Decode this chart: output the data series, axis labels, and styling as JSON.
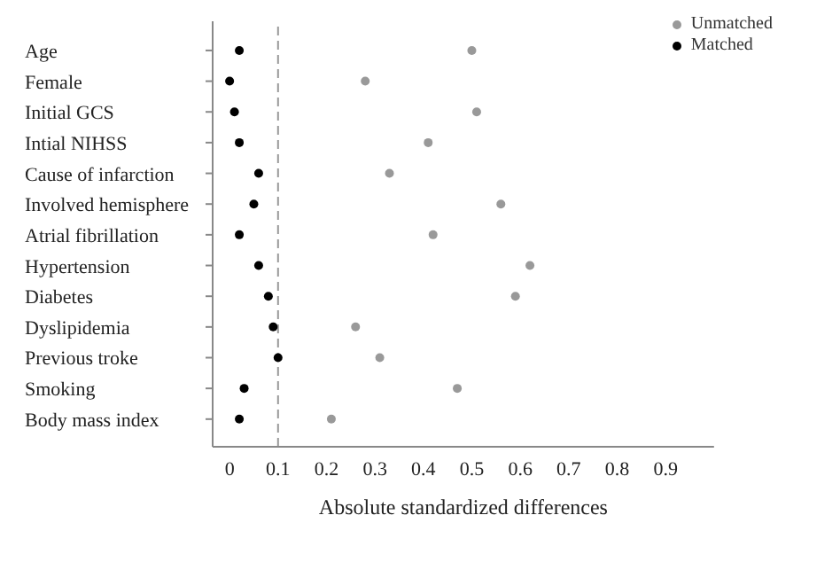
{
  "chart_data": {
    "type": "scatter",
    "orientation": "horizontal",
    "xlabel": "Absolute standardized differences",
    "categories": [
      "Age",
      "Female",
      "Initial GCS",
      "Intial NIHSS",
      "Cause of infarction",
      "Involved hemisphere",
      "Atrial fibrillation",
      "Hypertension",
      "Diabetes",
      "Dyslipidemia",
      "Previous troke",
      "Smoking",
      "Body mass index"
    ],
    "series": [
      {
        "name": "Unmatched",
        "color": "#999999",
        "values": [
          0.5,
          0.28,
          0.51,
          0.41,
          0.33,
          0.56,
          0.42,
          0.62,
          0.59,
          0.26,
          0.31,
          0.47,
          0.21
        ]
      },
      {
        "name": "Matched",
        "color": "#000000",
        "values": [
          0.02,
          0.0,
          0.01,
          0.02,
          0.06,
          0.05,
          0.02,
          0.06,
          0.08,
          0.09,
          0.1,
          0.03,
          0.02
        ]
      }
    ],
    "xlim": [
      -0.035,
      1.0
    ],
    "xticks": [
      0,
      0.1,
      0.2,
      0.3,
      0.4,
      0.5,
      0.6,
      0.7,
      0.8,
      0.9
    ],
    "ref_lines": [
      {
        "axis": "x",
        "value": 0.1,
        "line_style": "dashed",
        "color": "#999999"
      }
    ],
    "marker": "circle",
    "legend": "top right",
    "grid": false
  }
}
